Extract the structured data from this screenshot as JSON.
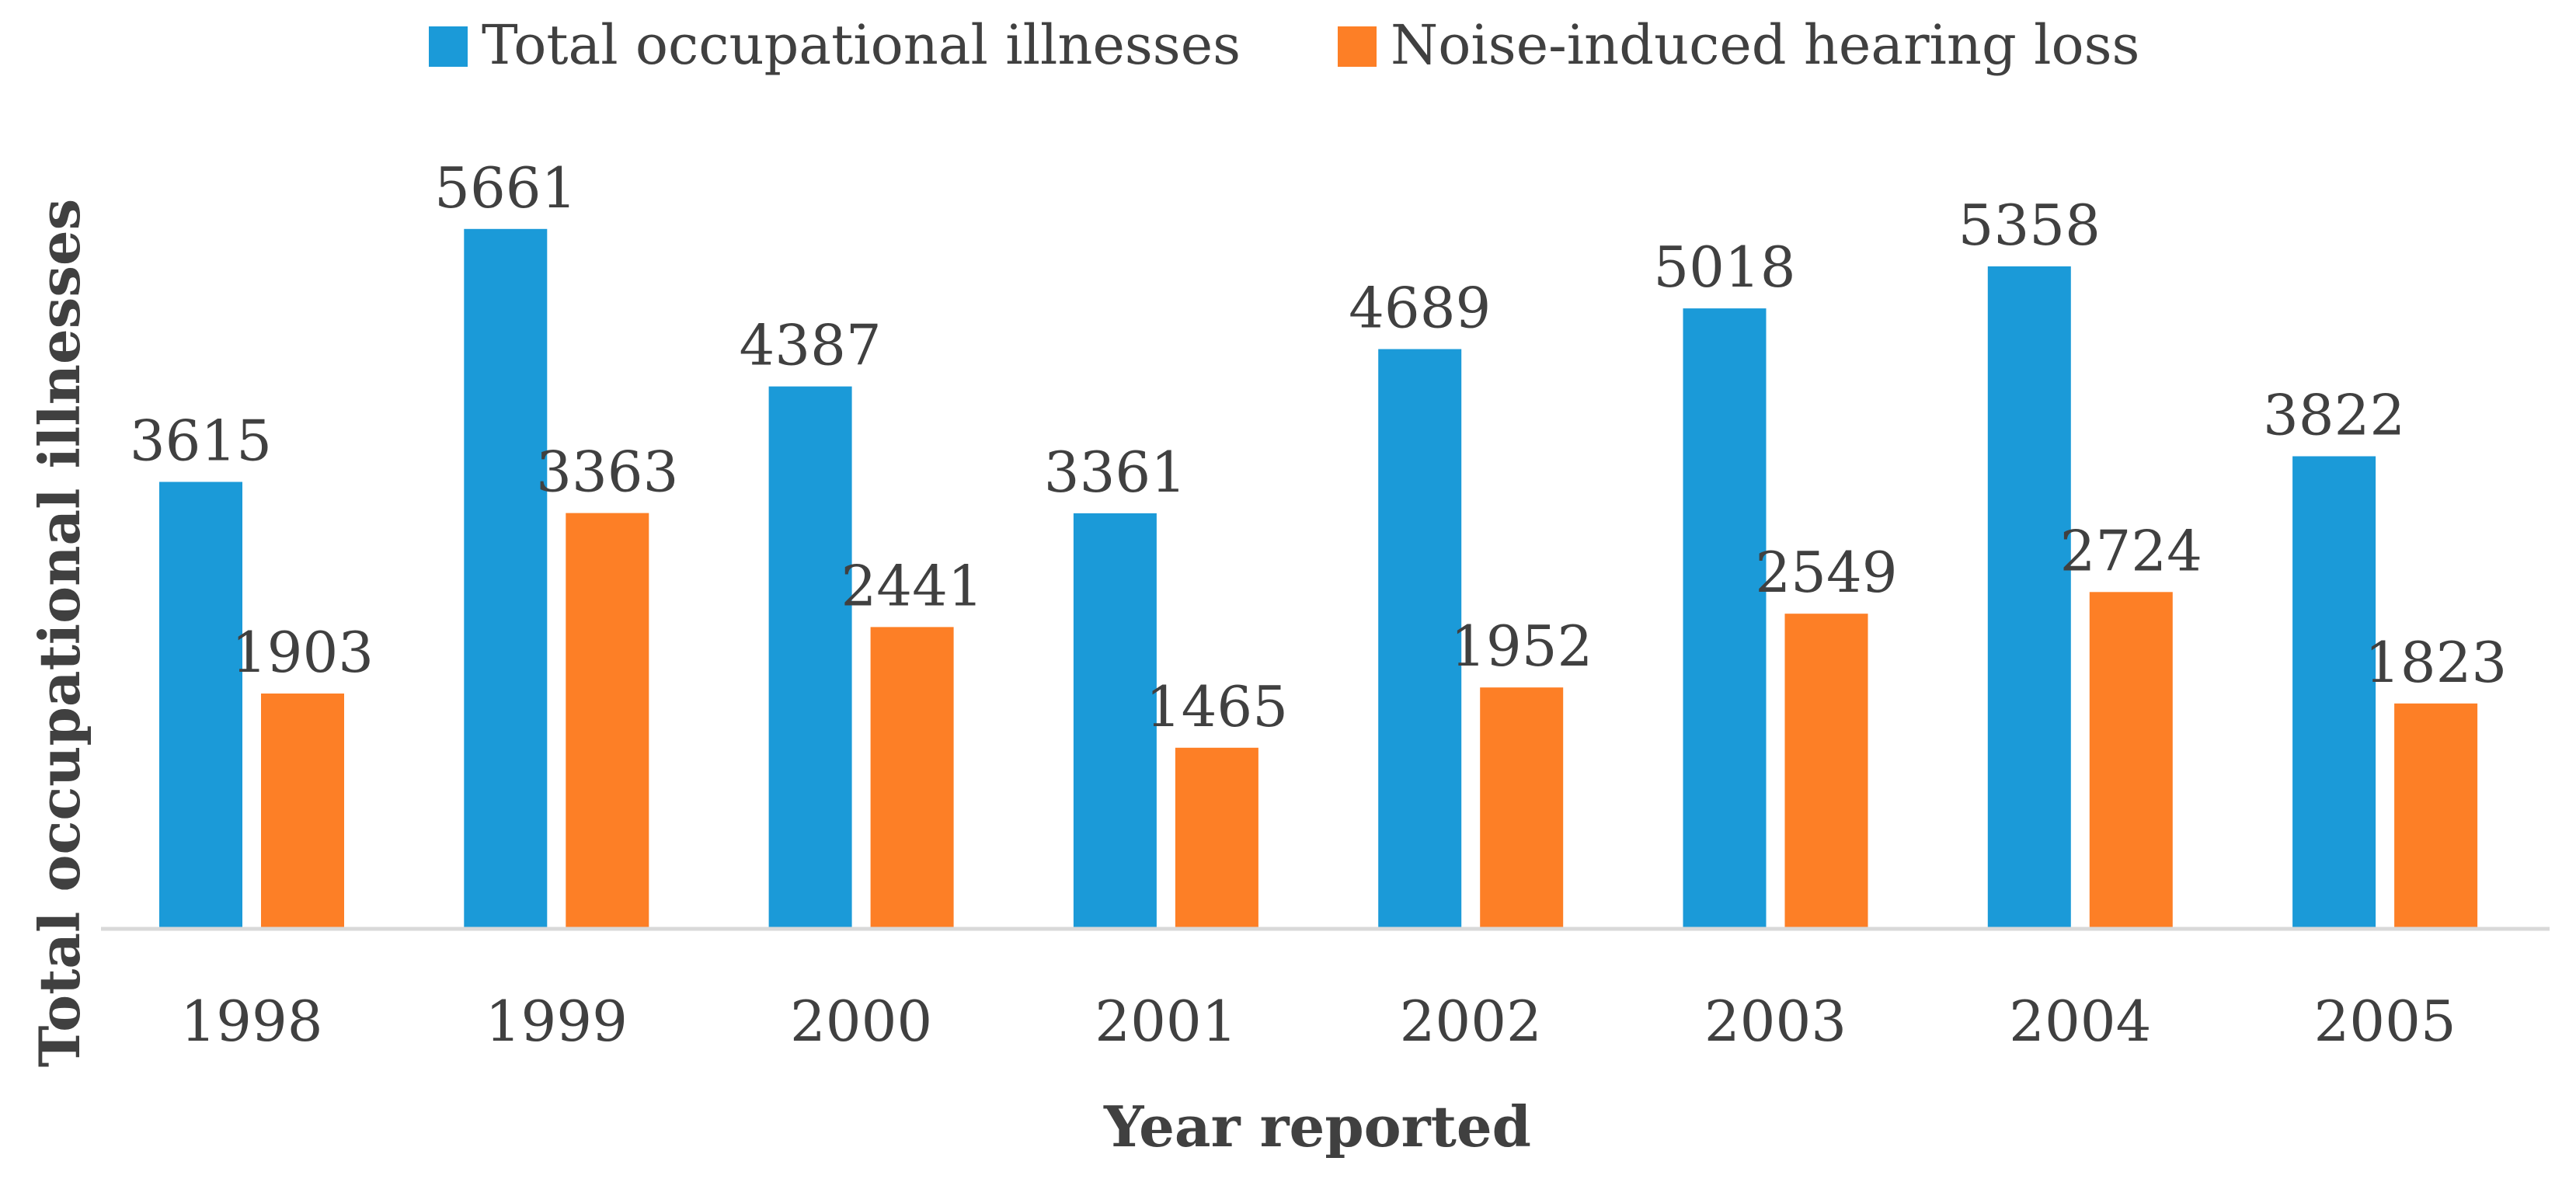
{
  "chart_data": {
    "type": "bar",
    "title": "",
    "xlabel": "Year reported",
    "ylabel": "Total occupational illnesses",
    "categories": [
      "1998",
      "1999",
      "2000",
      "2001",
      "2002",
      "2003",
      "2004",
      "2005"
    ],
    "series": [
      {
        "name": "Total occupational illnesses",
        "color": "#1b9ad8",
        "values": [
          3615,
          5661,
          4387,
          3361,
          4689,
          5018,
          5358,
          3822
        ]
      },
      {
        "name": "Noise-induced hearing loss",
        "color": "#fd7f26",
        "values": [
          1903,
          3363,
          2441,
          1465,
          1952,
          2549,
          2724,
          1823
        ]
      }
    ],
    "ylim": [
      0,
      6000
    ],
    "grid": false,
    "legend_position": "top-center",
    "data_labels": true,
    "y_ticks_visible": false
  }
}
